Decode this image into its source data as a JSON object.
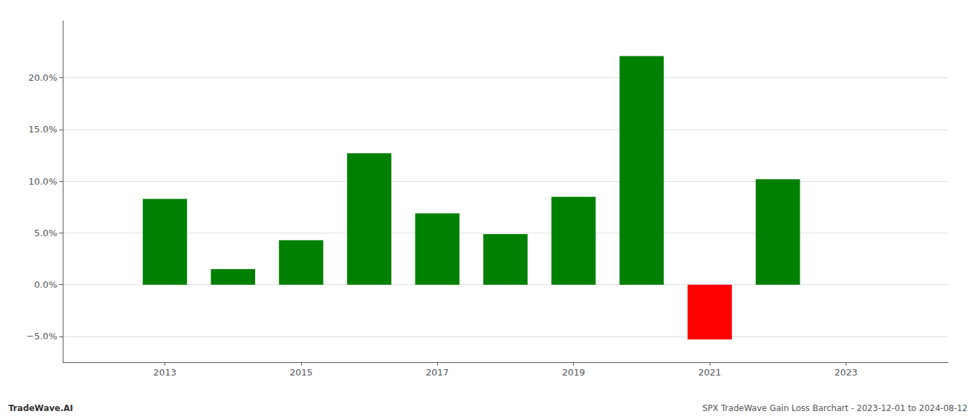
{
  "chart_data": {
    "type": "bar",
    "x": [
      2013,
      2014,
      2015,
      2016,
      2017,
      2018,
      2019,
      2020,
      2021,
      2022
    ],
    "values": [
      0.083,
      0.015,
      0.043,
      0.127,
      0.069,
      0.049,
      0.085,
      0.221,
      -0.053,
      0.102
    ],
    "colors": [
      "#008000",
      "#008000",
      "#008000",
      "#008000",
      "#008000",
      "#008000",
      "#008000",
      "#008000",
      "#ff0000",
      "#008000"
    ],
    "xlim": [
      2011.5,
      2024.5
    ],
    "xticks": [
      2013,
      2015,
      2017,
      2019,
      2021,
      2023
    ],
    "ylim": [
      -0.075,
      0.255
    ],
    "yticks": [
      {
        "value": -0.05,
        "label": "−5.0%"
      },
      {
        "value": 0.0,
        "label": "0.0%"
      },
      {
        "value": 0.05,
        "label": "5.0%"
      },
      {
        "value": 0.1,
        "label": "10.0%"
      },
      {
        "value": 0.15,
        "label": "15.0%"
      },
      {
        "value": 0.2,
        "label": "20.0%"
      }
    ],
    "grid": true,
    "annotations": [
      "TradeWave.AI",
      "SPX TradeWave Gain Loss Barchart - 2023-12-01 to 2024-08-12"
    ]
  }
}
